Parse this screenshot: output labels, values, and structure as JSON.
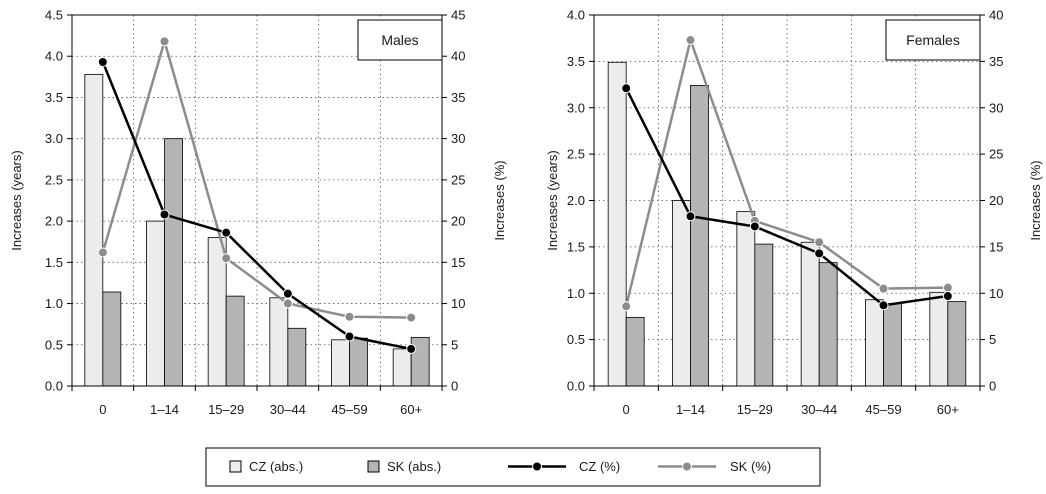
{
  "colors": {
    "cz_bar": "#ececec",
    "sk_bar": "#b4b4b4",
    "cz_line": "#000000",
    "sk_line": "#8c8c8c",
    "grid": "#555555"
  },
  "legend": {
    "cz_abs": "CZ (abs.)",
    "sk_abs": "SK (abs.)",
    "cz_pct": "CZ (%)",
    "sk_pct": "SK (%)"
  },
  "chart_data": [
    {
      "type": "bar",
      "title": "Males",
      "categories": [
        "0",
        "1–14",
        "15–29",
        "30–44",
        "45–59",
        "60+"
      ],
      "ylabel": "Increases (years)",
      "y2label": "Increases (%)",
      "ylim": [
        0,
        4.5
      ],
      "y2lim": [
        0,
        45
      ],
      "yticks": [
        "0.0",
        "0.5",
        "1.0",
        "1.5",
        "2.0",
        "2.5",
        "3.0",
        "3.5",
        "4.0",
        "4.5"
      ],
      "y2ticks": [
        "0",
        "5",
        "10",
        "15",
        "20",
        "25",
        "30",
        "35",
        "40",
        "45"
      ],
      "grid": true,
      "series": [
        {
          "name": "CZ (abs.)",
          "kind": "bar",
          "axis": "left",
          "values": [
            3.78,
            2.0,
            1.8,
            1.07,
            0.56,
            0.45
          ]
        },
        {
          "name": "SK (abs.)",
          "kind": "bar",
          "axis": "left",
          "values": [
            1.14,
            3.0,
            1.09,
            0.7,
            0.58,
            0.59
          ]
        },
        {
          "name": "CZ (%)",
          "kind": "line",
          "axis": "right",
          "values": [
            39.3,
            20.8,
            18.6,
            11.2,
            6.0,
            4.5
          ]
        },
        {
          "name": "SK (%)",
          "kind": "line",
          "axis": "right",
          "values": [
            16.2,
            41.8,
            15.5,
            10.0,
            8.4,
            8.3
          ]
        }
      ]
    },
    {
      "type": "bar",
      "title": "Females",
      "categories": [
        "0",
        "1–14",
        "15–29",
        "30–44",
        "45–59",
        "60+"
      ],
      "ylabel": "Increases (years)",
      "y2label": "Increases (%)",
      "ylim": [
        0,
        4.0
      ],
      "y2lim": [
        0,
        40
      ],
      "yticks": [
        "0.0",
        "0.5",
        "1.0",
        "1.5",
        "2.0",
        "2.5",
        "3.0",
        "3.5",
        "4.0"
      ],
      "y2ticks": [
        "0",
        "5",
        "10",
        "15",
        "20",
        "25",
        "30",
        "35",
        "40"
      ],
      "grid": true,
      "series": [
        {
          "name": "CZ (abs.)",
          "kind": "bar",
          "axis": "left",
          "values": [
            3.49,
            2.0,
            1.88,
            1.55,
            0.93,
            1.01
          ]
        },
        {
          "name": "SK (abs.)",
          "kind": "bar",
          "axis": "left",
          "values": [
            0.74,
            3.24,
            1.53,
            1.33,
            0.89,
            0.91
          ]
        },
        {
          "name": "CZ (%)",
          "kind": "line",
          "axis": "right",
          "values": [
            32.1,
            18.3,
            17.2,
            14.3,
            8.7,
            9.7
          ]
        },
        {
          "name": "SK (%)",
          "kind": "line",
          "axis": "right",
          "values": [
            8.6,
            37.3,
            17.8,
            15.5,
            10.5,
            10.6
          ]
        }
      ]
    }
  ]
}
